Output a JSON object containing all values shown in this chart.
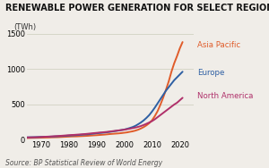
{
  "title": "RENEWABLE POWER GENERATION FOR SELECT REGIONS",
  "ylabel": "(TWh)",
  "source": "Source: BP Statistical Review of World Energy",
  "ylim": [
    0,
    1500
  ],
  "yticks": [
    0,
    500,
    1000,
    1500
  ],
  "xlim": [
    1965,
    2025
  ],
  "xticks": [
    1970,
    1980,
    1990,
    2000,
    2010,
    2020
  ],
  "background_color": "#f0ede8",
  "series": {
    "Asia Pacific": {
      "color": "#e05c2a",
      "years": [
        1965,
        1966,
        1967,
        1968,
        1969,
        1970,
        1971,
        1972,
        1973,
        1974,
        1975,
        1976,
        1977,
        1978,
        1979,
        1980,
        1981,
        1982,
        1983,
        1984,
        1985,
        1986,
        1987,
        1988,
        1989,
        1990,
        1991,
        1992,
        1993,
        1994,
        1995,
        1996,
        1997,
        1998,
        1999,
        2000,
        2001,
        2002,
        2003,
        2004,
        2005,
        2006,
        2007,
        2008,
        2009,
        2010,
        2011,
        2012,
        2013,
        2014,
        2015,
        2016,
        2017,
        2018,
        2019,
        2020,
        2021
      ],
      "values": [
        20,
        21,
        22,
        23,
        24,
        25,
        26,
        27,
        28,
        30,
        31,
        32,
        34,
        36,
        38,
        40,
        42,
        43,
        44,
        46,
        48,
        50,
        52,
        55,
        58,
        60,
        63,
        66,
        69,
        73,
        77,
        80,
        83,
        86,
        90,
        95,
        100,
        108,
        115,
        125,
        138,
        155,
        175,
        200,
        230,
        270,
        330,
        400,
        490,
        590,
        700,
        820,
        960,
        1080,
        1180,
        1290,
        1380
      ]
    },
    "Europe": {
      "color": "#2e5fa3",
      "years": [
        1965,
        1966,
        1967,
        1968,
        1969,
        1970,
        1971,
        1972,
        1973,
        1974,
        1975,
        1976,
        1977,
        1978,
        1979,
        1980,
        1981,
        1982,
        1983,
        1984,
        1985,
        1986,
        1987,
        1988,
        1989,
        1990,
        1991,
        1992,
        1993,
        1994,
        1995,
        1996,
        1997,
        1998,
        1999,
        2000,
        2001,
        2002,
        2003,
        2004,
        2005,
        2006,
        2007,
        2008,
        2009,
        2010,
        2011,
        2012,
        2013,
        2014,
        2015,
        2016,
        2017,
        2018,
        2019,
        2020,
        2021
      ],
      "values": [
        30,
        31,
        32,
        33,
        34,
        36,
        37,
        38,
        39,
        41,
        43,
        45,
        47,
        49,
        52,
        55,
        57,
        59,
        62,
        65,
        68,
        71,
        74,
        78,
        82,
        87,
        91,
        94,
        98,
        103,
        108,
        114,
        120,
        126,
        133,
        140,
        150,
        162,
        175,
        192,
        215,
        240,
        270,
        305,
        345,
        395,
        450,
        510,
        570,
        630,
        690,
        740,
        790,
        840,
        880,
        920,
        960
      ]
    },
    "North America": {
      "color": "#b0306a",
      "years": [
        1965,
        1966,
        1967,
        1968,
        1969,
        1970,
        1971,
        1972,
        1973,
        1974,
        1975,
        1976,
        1977,
        1978,
        1979,
        1980,
        1981,
        1982,
        1983,
        1984,
        1985,
        1986,
        1987,
        1988,
        1989,
        1990,
        1991,
        1992,
        1993,
        1994,
        1995,
        1996,
        1997,
        1998,
        1999,
        2000,
        2001,
        2002,
        2003,
        2004,
        2005,
        2006,
        2007,
        2008,
        2009,
        2010,
        2011,
        2012,
        2013,
        2014,
        2015,
        2016,
        2017,
        2018,
        2019,
        2020,
        2021
      ],
      "values": [
        28,
        29,
        30,
        31,
        33,
        35,
        37,
        39,
        41,
        43,
        46,
        48,
        51,
        54,
        57,
        60,
        63,
        65,
        68,
        71,
        74,
        77,
        81,
        85,
        89,
        93,
        97,
        100,
        104,
        108,
        113,
        118,
        123,
        128,
        133,
        138,
        145,
        152,
        160,
        168,
        178,
        190,
        205,
        222,
        240,
        260,
        285,
        315,
        345,
        375,
        405,
        435,
        465,
        495,
        520,
        555,
        590
      ]
    }
  },
  "labels": {
    "Asia Pacific": {
      "y": 1340,
      "color": "#e05c2a"
    },
    "Europe": {
      "y": 950,
      "color": "#2e5fa3"
    },
    "North America": {
      "y": 620,
      "color": "#b0306a"
    }
  },
  "title_fontsize": 7.0,
  "label_fontsize": 6.2,
  "tick_fontsize": 6.0,
  "source_fontsize": 5.5,
  "ylabel_fontsize": 6.0,
  "line_width": 1.4
}
